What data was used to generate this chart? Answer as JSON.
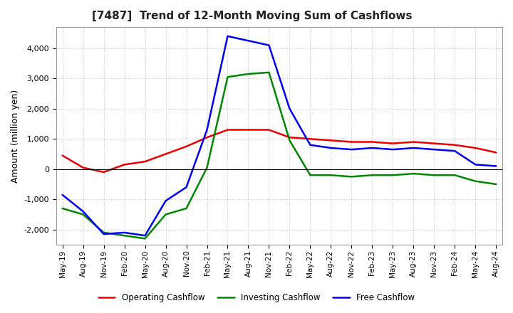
{
  "title": "[7487]  Trend of 12-Month Moving Sum of Cashflows",
  "ylabel": "Amount (million yen)",
  "ylim": [
    -2500,
    4700
  ],
  "yticks": [
    -2000,
    -1000,
    0,
    1000,
    2000,
    3000,
    4000
  ],
  "background_color": "#ffffff",
  "grid_color": "#aaaaaa",
  "legend": [
    "Operating Cashflow",
    "Investing Cashflow",
    "Free Cashflow"
  ],
  "line_colors": [
    "#ee0000",
    "#008800",
    "#0000ee"
  ],
  "x_labels": [
    "May-19",
    "Aug-19",
    "Nov-19",
    "Feb-20",
    "May-20",
    "Aug-20",
    "Nov-20",
    "Feb-21",
    "May-21",
    "Aug-21",
    "Nov-21",
    "Feb-22",
    "May-22",
    "Aug-22",
    "Nov-22",
    "Feb-23",
    "May-23",
    "Aug-23",
    "Nov-23",
    "Feb-24",
    "May-24",
    "Aug-24"
  ],
  "operating": [
    450,
    50,
    -100,
    150,
    250,
    500,
    750,
    1050,
    1300,
    1300,
    1300,
    1050,
    1000,
    950,
    900,
    900,
    850,
    900,
    850,
    800,
    700,
    550
  ],
  "investing": [
    -1300,
    -1500,
    -2100,
    -2200,
    -2300,
    -1500,
    -1300,
    50,
    3050,
    3150,
    3200,
    950,
    -200,
    -200,
    -250,
    -200,
    -200,
    -150,
    -200,
    -200,
    -400,
    -500
  ],
  "free": [
    -850,
    -1400,
    -2150,
    -2100,
    -2200,
    -1050,
    -600,
    1300,
    4400,
    4250,
    4100,
    2000,
    800,
    700,
    650,
    700,
    650,
    700,
    650,
    600,
    150,
    100
  ],
  "title_fontsize": 11,
  "axis_label_fontsize": 9,
  "tick_fontsize": 8,
  "legend_fontsize": 8.5,
  "linewidth": 1.8
}
